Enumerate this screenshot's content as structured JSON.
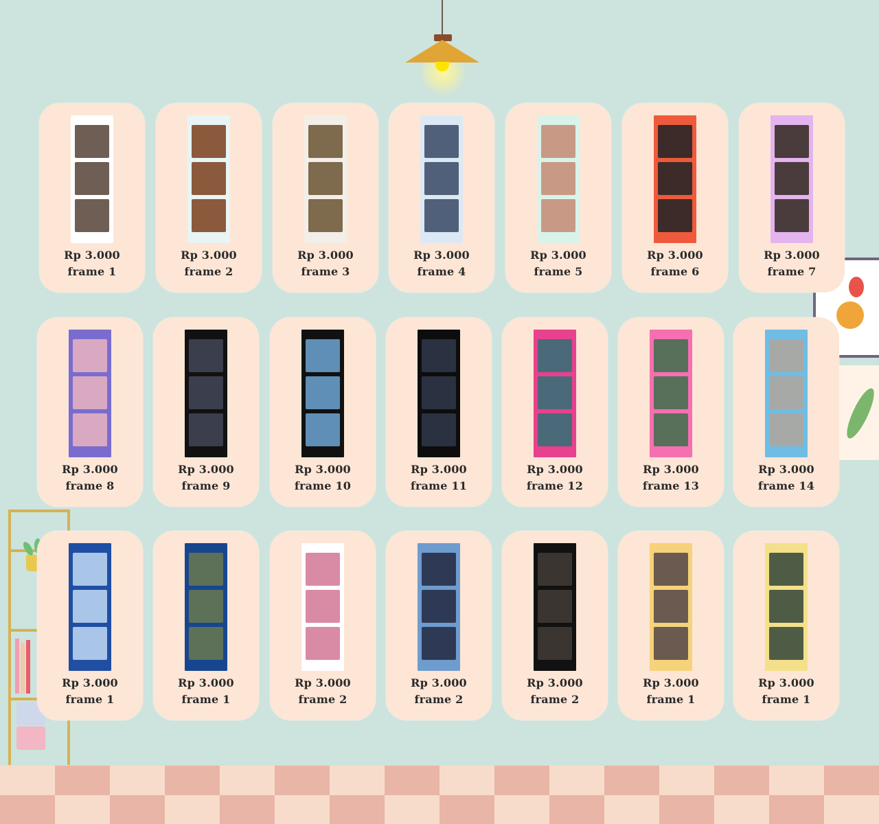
{
  "lamp": {
    "icon": "pendant-lamp-icon"
  },
  "catalog": {
    "rows": [
      [
        {
          "price": "Rp 3.000",
          "name": "frame 1",
          "bg": "#ffffff",
          "photo": "#6f5e54"
        },
        {
          "price": "Rp 3.000",
          "name": "frame 2",
          "bg": "#e9f4f5",
          "photo": "#8b5a3c"
        },
        {
          "price": "Rp 3.000",
          "name": "frame 3",
          "bg": "#f3eee8",
          "photo": "#7e6a4c"
        },
        {
          "price": "Rp 3.000",
          "name": "frame 4",
          "bg": "#dce8f4",
          "photo": "#50607a"
        },
        {
          "price": "Rp 3.000",
          "name": "frame 5",
          "bg": "#d9f3ea",
          "photo": "#c89a86"
        },
        {
          "price": "Rp 3.000",
          "name": "frame 6",
          "bg": "#ef5a3c",
          "photo": "#3c2b28"
        },
        {
          "price": "Rp 3.000",
          "name": "frame 7",
          "bg": "#e4b4ee",
          "photo": "#4a3c3c"
        }
      ],
      [
        {
          "price": "Rp 3.000",
          "name": "frame 8",
          "bg": "#7a6ccf",
          "photo": "#d9a9c2"
        },
        {
          "price": "Rp 3.000",
          "name": "frame 9",
          "bg": "#111111",
          "photo": "#3b3e4c"
        },
        {
          "price": "Rp 3.000",
          "name": "frame 10",
          "bg": "#111111",
          "photo": "#5f8fb6"
        },
        {
          "price": "Rp 3.000",
          "name": "frame 11",
          "bg": "#0d0d0d",
          "photo": "#2a3140"
        },
        {
          "price": "Rp 3.000",
          "name": "frame 12",
          "bg": "#e8418e",
          "photo": "#4a6a7a"
        },
        {
          "price": "Rp 3.000",
          "name": "frame 13",
          "bg": "#f56fb1",
          "photo": "#58705a"
        },
        {
          "price": "Rp 3.000",
          "name": "frame 14",
          "bg": "#6fbde4",
          "photo": "#a7a9a6"
        }
      ],
      [
        {
          "price": "Rp 3.000",
          "name": "frame 1",
          "bg": "#1f4ea3",
          "photo": "#a9c6e8"
        },
        {
          "price": "Rp 3.000",
          "name": "frame 1",
          "bg": "#17468f",
          "photo": "#5d7058"
        },
        {
          "price": "Rp 3.000",
          "name": "frame 2",
          "bg": "#ffffff",
          "photo": "#d98aa4"
        },
        {
          "price": "Rp 3.000",
          "name": "frame 2",
          "bg": "#6f9ccf",
          "photo": "#2e3a55"
        },
        {
          "price": "Rp 3.000",
          "name": "frame 2",
          "bg": "#111111",
          "photo": "#3a3530"
        },
        {
          "price": "Rp 3.000",
          "name": "frame 1",
          "bg": "#f6d27a",
          "photo": "#6a5a50"
        },
        {
          "price": "Rp 3.000",
          "name": "frame 1",
          "bg": "#f4e08a",
          "photo": "#4f5c45"
        }
      ]
    ]
  },
  "colors": {
    "wall": "#cde3dd",
    "card": "#fde6d6",
    "floor_light": "#f7dccb",
    "floor_dark": "#e9b5a6",
    "shelf": "#d6b154"
  }
}
